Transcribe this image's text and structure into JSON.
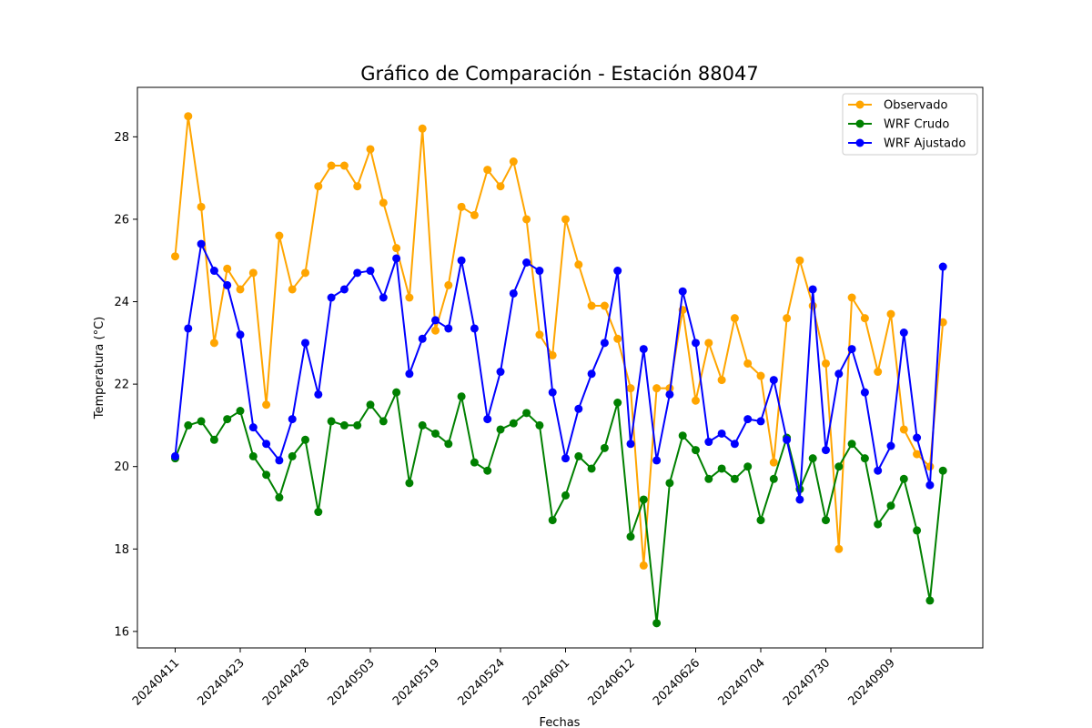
{
  "chart_data": {
    "type": "line",
    "title": "Gráfico de Comparación - Estación 88047",
    "xlabel": "Fechas",
    "ylabel": "Temperatura (°C)",
    "ylim": [
      15.6,
      29.2
    ],
    "y_ticks": [
      16,
      18,
      20,
      22,
      24,
      26,
      28
    ],
    "x_tick_labels": [
      "20240411",
      "20240423",
      "20240428",
      "20240503",
      "20240519",
      "20240524",
      "20240601",
      "20240612",
      "20240626",
      "20240704",
      "20240730",
      "20240909"
    ],
    "x_tick_every": 5,
    "grid": false,
    "legend_position": "top-right",
    "series": [
      {
        "name": "Observado",
        "color": "#FFA500",
        "values": [
          25.1,
          28.5,
          26.3,
          23.0,
          24.8,
          24.3,
          24.7,
          21.5,
          25.6,
          24.3,
          24.7,
          26.8,
          27.3,
          27.3,
          26.8,
          27.7,
          26.4,
          25.3,
          24.1,
          28.2,
          23.3,
          24.4,
          26.3,
          26.1,
          27.2,
          26.8,
          27.4,
          26.0,
          23.2,
          22.7,
          26.0,
          24.9,
          23.9,
          23.9,
          23.1,
          21.9,
          17.6,
          21.9,
          21.9,
          23.8,
          21.6,
          23.0,
          22.1,
          23.6,
          22.5,
          22.2,
          20.1,
          23.6,
          25.0,
          23.9,
          22.5,
          18.0,
          24.1,
          23.6,
          22.3,
          23.7,
          20.9,
          20.3,
          20.0,
          23.5
        ]
      },
      {
        "name": "WRF Crudo",
        "color": "#008000",
        "values": [
          20.2,
          21.0,
          21.1,
          20.65,
          21.15,
          21.35,
          20.25,
          19.8,
          19.25,
          20.25,
          20.65,
          18.9,
          21.1,
          21.0,
          21.0,
          21.5,
          21.1,
          21.8,
          19.6,
          21.0,
          20.8,
          20.55,
          21.7,
          20.1,
          19.9,
          20.9,
          21.05,
          21.3,
          21.0,
          18.7,
          19.3,
          20.25,
          19.95,
          20.45,
          21.55,
          18.3,
          19.2,
          16.2,
          19.6,
          20.75,
          20.4,
          19.7,
          19.95,
          19.7,
          20.0,
          18.7,
          19.7,
          20.7,
          19.45,
          20.2,
          18.7,
          20.0,
          20.55,
          20.2,
          18.6,
          19.05,
          19.7,
          18.45,
          16.75,
          19.9
        ]
      },
      {
        "name": "WRF Ajustado",
        "color": "#0000FF",
        "values": [
          20.25,
          23.35,
          25.4,
          24.75,
          24.4,
          23.2,
          20.95,
          20.55,
          20.15,
          21.15,
          23.0,
          21.75,
          24.1,
          24.3,
          24.7,
          24.75,
          24.1,
          25.05,
          22.25,
          23.1,
          23.55,
          23.35,
          25.0,
          23.35,
          21.15,
          22.3,
          24.2,
          24.95,
          24.75,
          21.8,
          20.2,
          21.4,
          22.25,
          23.0,
          24.75,
          20.55,
          22.85,
          20.15,
          21.75,
          24.25,
          23.0,
          20.6,
          20.8,
          20.55,
          21.15,
          21.1,
          22.1,
          20.65,
          19.2,
          24.3,
          20.4,
          22.25,
          22.85,
          21.8,
          19.9,
          20.5,
          23.25,
          20.7,
          19.55,
          24.85
        ]
      }
    ]
  }
}
